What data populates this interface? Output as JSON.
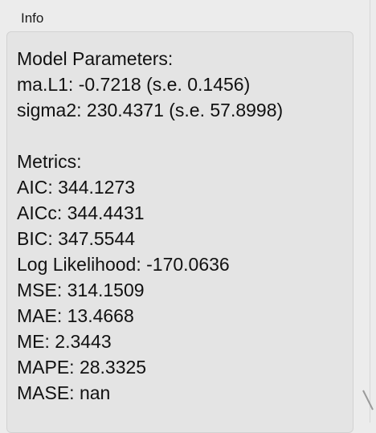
{
  "header": {
    "title": "Info"
  },
  "sections": [
    {
      "heading": "Model Parameters:",
      "lines": [
        "ma.L1: -0.7218 (s.e. 0.1456)",
        "sigma2: 230.4371 (s.e. 57.8998)"
      ]
    },
    {
      "heading": "Metrics:",
      "lines": [
        "AIC: 344.1273",
        "AICc: 344.4431",
        "BIC: 347.5544",
        "Log Likelihood: -170.0636",
        "MSE: 314.1509",
        "MAE: 13.4668",
        "ME: 2.3443",
        "MAPE: 28.3325",
        "MASE: nan"
      ]
    }
  ]
}
